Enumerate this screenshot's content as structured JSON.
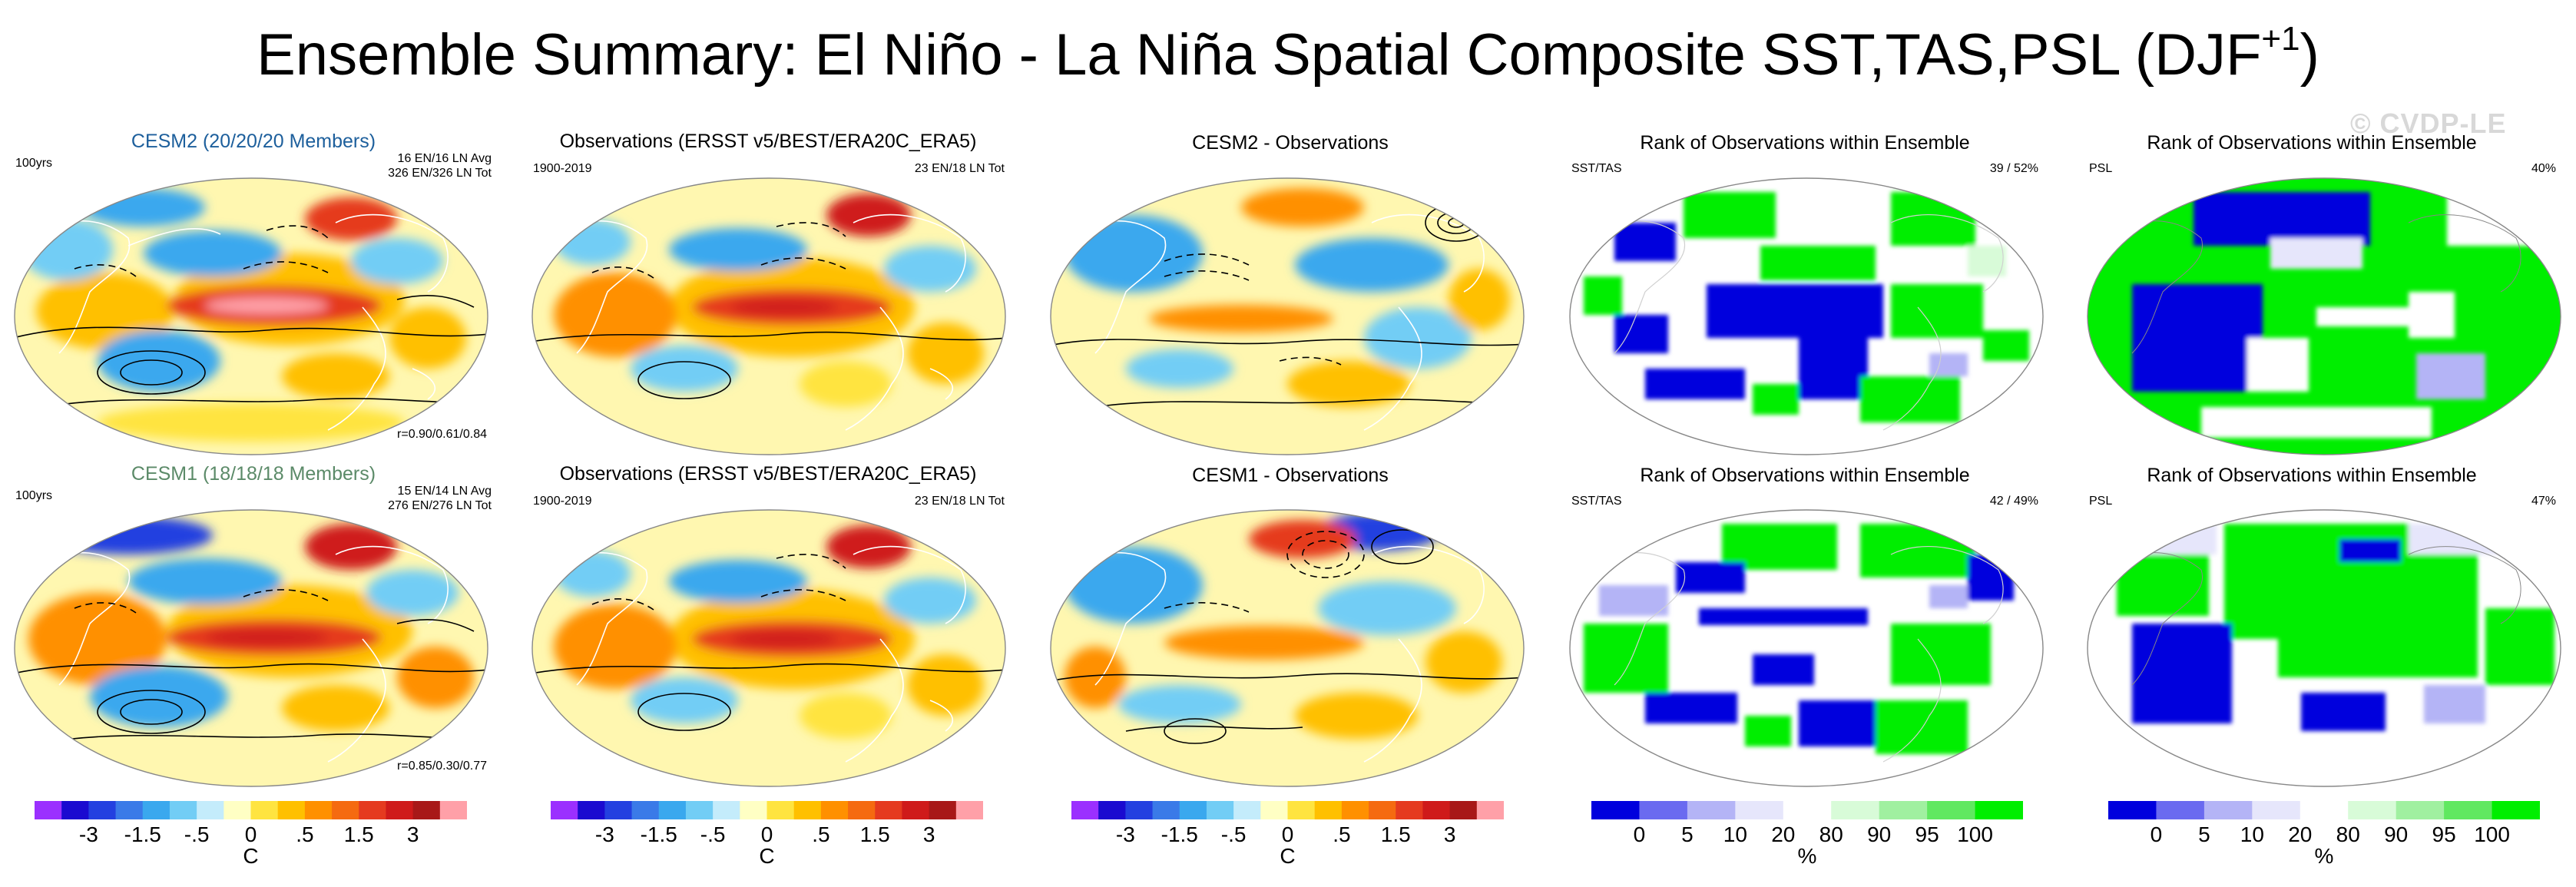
{
  "figure": {
    "title_main": "Ensemble Summary: El Niño - La Niña Spatial Composite SST,TAS,PSL (DJF",
    "title_sup": "+1",
    "title_close": ")",
    "watermark": "© CVDP-LE"
  },
  "colors": {
    "model_title_cesm2": "#1d5f9c",
    "model_title_cesm1": "#5b8a68",
    "ocean_background": "#fff7b0",
    "warm": "#e53a1f",
    "cool": "#3aa8ee",
    "rank_low": "#0000dd",
    "rank_high": "#00ee00"
  },
  "rows": [
    {
      "col1": {
        "title": "CESM2 (20/20/20 Members)",
        "left_note": "100yrs",
        "right_note_1": "16 EN/16 LN Avg",
        "right_note_2": "326 EN/326 LN Tot",
        "corr": "r=0.90/0.61/0.84"
      },
      "col2": {
        "title": "Observations (ERSST v5/BEST/ERA20C_ERA5)",
        "left_note": "1900-2019",
        "right_note": "23 EN/18 LN Tot"
      },
      "col3": {
        "title": "CESM2 - Observations"
      },
      "col4": {
        "title": "Rank of Observations within Ensemble",
        "left_note": "SST/TAS",
        "right_note": "39 /  52%"
      },
      "col5": {
        "title": "Rank of Observations within Ensemble",
        "left_note": "PSL",
        "right_note": "40%"
      }
    },
    {
      "col1": {
        "title": "CESM1 (18/18/18 Members)",
        "left_note": "100yrs",
        "right_note_1": "15 EN/14 LN Avg",
        "right_note_2": "276 EN/276 LN Tot",
        "corr": "r=0.85/0.30/0.77"
      },
      "col2": {
        "title": "Observations (ERSST v5/BEST/ERA20C_ERA5)",
        "left_note": "1900-2019",
        "right_note": "23 EN/18 LN Tot"
      },
      "col3": {
        "title": "CESM1 - Observations"
      },
      "col4": {
        "title": "Rank of Observations within Ensemble",
        "left_note": "SST/TAS",
        "right_note": "42 /  49%"
      },
      "col5": {
        "title": "Rank of Observations within Ensemble",
        "left_note": "PSL",
        "right_note": "47%"
      }
    }
  ],
  "chart_data": [
    {
      "type": "heatmap",
      "name": "temperature composite colorbar",
      "unit": "C",
      "tick_labels": [
        "-3",
        "-1.5",
        "-.5",
        "0",
        ".5",
        "1.5",
        "3"
      ],
      "colors": [
        "#9b30ff",
        "#1a0ad0",
        "#2340e0",
        "#3a7ae8",
        "#3aa8ee",
        "#72cdf5",
        "#c4ecfb",
        "#ffffc4",
        "#ffe440",
        "#ffc000",
        "#ff9000",
        "#f56a10",
        "#e53a1f",
        "#cf1a1a",
        "#a81818",
        "#ffa0a8"
      ]
    },
    {
      "type": "heatmap",
      "name": "rank colorbar",
      "unit": "%",
      "tick_labels": [
        "0",
        "5",
        "10",
        "20",
        "80",
        "90",
        "95",
        "100"
      ],
      "colors": [
        "#0000dd",
        "#6a6af0",
        "#b4b4f6",
        "#e6e6fb",
        "#ffffff",
        "#d8fbd8",
        "#a0f0a0",
        "#60e860",
        "#00ee00"
      ]
    }
  ]
}
